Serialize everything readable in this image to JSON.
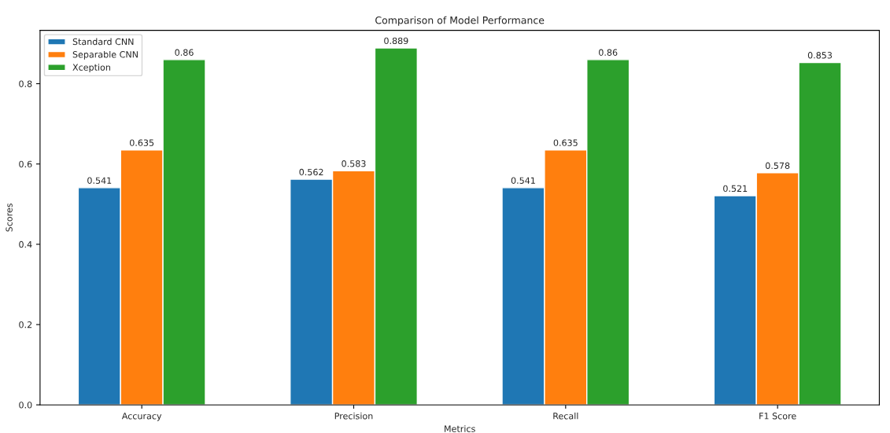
{
  "chart_data": {
    "type": "bar",
    "title": "Comparison of Model Performance",
    "xlabel": "Metrics",
    "ylabel": "Scores",
    "categories": [
      "Accuracy",
      "Precision",
      "Recall",
      "F1 Score"
    ],
    "series": [
      {
        "name": "Standard CNN",
        "color": "#1f77b4",
        "values": [
          0.541,
          0.562,
          0.541,
          0.521
        ]
      },
      {
        "name": "Separable CNN",
        "color": "#ff7f0e",
        "values": [
          0.635,
          0.583,
          0.635,
          0.578
        ]
      },
      {
        "name": "Xception",
        "color": "#2ca02c",
        "values": [
          0.86,
          0.889,
          0.86,
          0.853
        ]
      }
    ],
    "ylim": [
      0,
      0.933
    ],
    "yticks": [
      {
        "value": 0,
        "label": "0.0"
      },
      {
        "value": 0.2,
        "label": "0.2"
      },
      {
        "value": 0.4,
        "label": "0.4"
      },
      {
        "value": 0.6,
        "label": "0.6"
      },
      {
        "value": 0.8,
        "label": "0.8"
      }
    ],
    "data_labels": true,
    "legend": "top left",
    "grid": false
  }
}
